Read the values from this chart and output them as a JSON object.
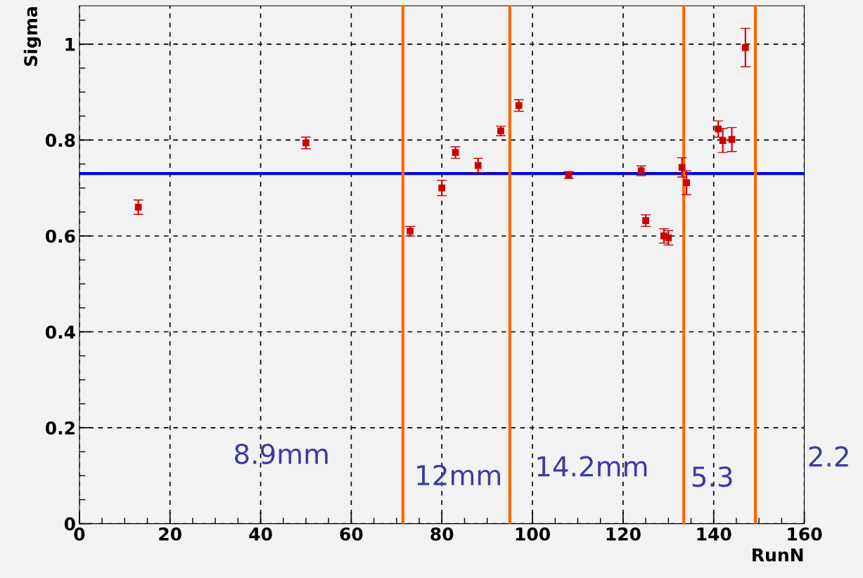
{
  "chart_data": {
    "type": "scatter",
    "xlabel": "RunN",
    "ylabel": "Sigma",
    "x": [
      13,
      50,
      73,
      80,
      83,
      88,
      93,
      97,
      108,
      124,
      125,
      129,
      130,
      133,
      134,
      141,
      142,
      144,
      147
    ],
    "series": [
      {
        "color": "#cc0000",
        "values": [
          0.66,
          0.794,
          0.61,
          0.7,
          0.774,
          0.747,
          0.819,
          0.872,
          0.727,
          0.736,
          0.632,
          0.6,
          0.596,
          0.743,
          0.711,
          0.823,
          0.799,
          0.801,
          0.993
        ],
        "errors": [
          0.015,
          0.012,
          0.01,
          0.016,
          0.012,
          0.015,
          0.01,
          0.012,
          0.007,
          0.01,
          0.012,
          0.015,
          0.015,
          0.02,
          0.025,
          0.017,
          0.025,
          0.025,
          0.04
        ]
      }
    ],
    "marker": "square",
    "xlim": [
      0,
      160
    ],
    "ylim": [
      0,
      1.08
    ],
    "xticks": [
      0,
      20,
      40,
      60,
      80,
      100,
      120,
      140,
      160
    ],
    "yticks": [
      0,
      0.2,
      0.4,
      0.6,
      0.8,
      1
    ],
    "grid": true,
    "ref_lines": [
      {
        "axis": "y",
        "value": 0.73,
        "color": "#0000dd"
      },
      {
        "axis": "x",
        "value": 71.4,
        "color": "#ff6600"
      },
      {
        "axis": "x",
        "value": 95,
        "color": "#ff6600"
      },
      {
        "axis": "x",
        "value": 133.4,
        "color": "#ff6600"
      },
      {
        "axis": "x",
        "value": 149.2,
        "color": "#ff6600"
      }
    ],
    "annotations": [
      "8.9mm",
      "12mm",
      "14.2mm",
      "5.3",
      "2.2"
    ]
  }
}
